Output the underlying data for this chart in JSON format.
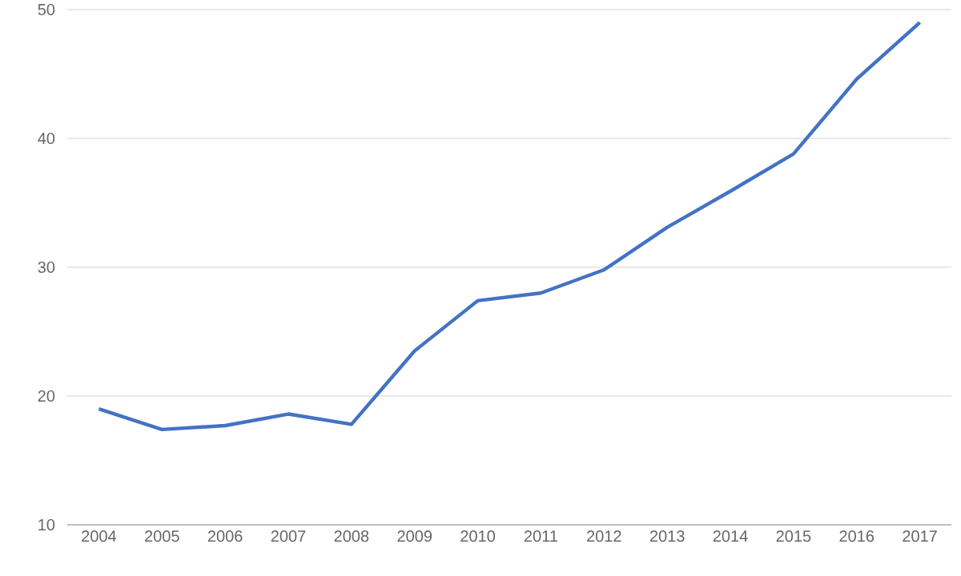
{
  "chart_data": {
    "type": "line",
    "categories": [
      "2004",
      "2005",
      "2006",
      "2007",
      "2008",
      "2009",
      "2010",
      "2011",
      "2012",
      "2013",
      "2014",
      "2015",
      "2016",
      "2017"
    ],
    "series": [
      {
        "color": "#4472c4",
        "values": [
          19.0,
          17.4,
          17.7,
          18.6,
          17.8,
          23.5,
          27.4,
          28.0,
          29.8,
          33.1,
          35.9,
          38.8,
          44.6,
          49.0
        ]
      }
    ],
    "ylim": [
      10,
      50
    ],
    "yticks": [
      10,
      20,
      30,
      40,
      50
    ],
    "grid": "y",
    "marker": "none",
    "line_style": "solid"
  }
}
